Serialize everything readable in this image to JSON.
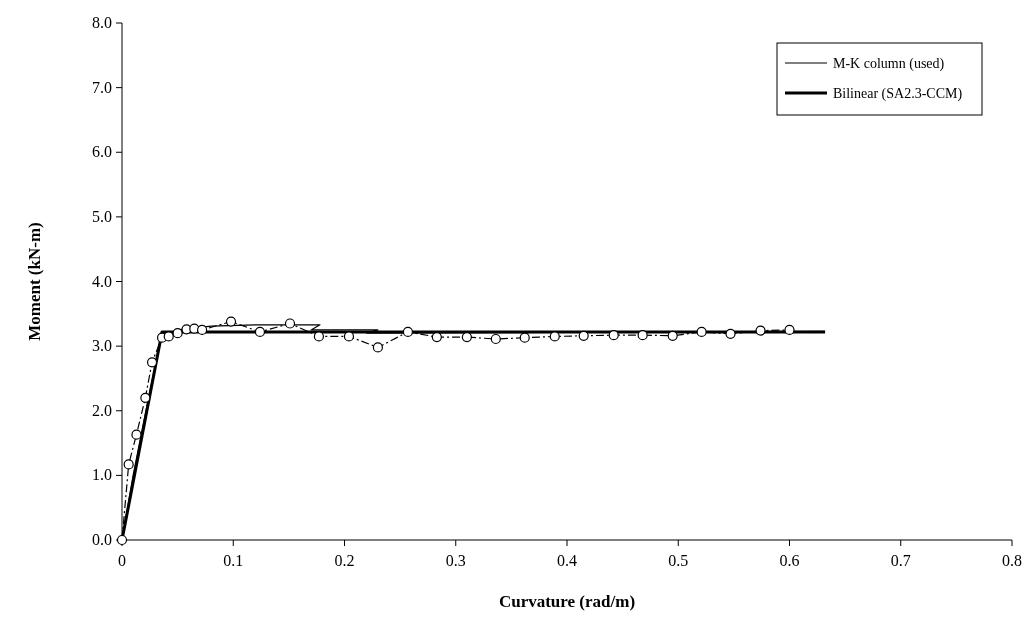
{
  "chart_data": {
    "type": "line",
    "xlabel": "Curvature (rad/m)",
    "ylabel": "Moment (kN-m)",
    "xlim": [
      0,
      0.8
    ],
    "ylim": [
      0,
      8
    ],
    "xticks": [
      0,
      0.1,
      0.2,
      0.3,
      0.4,
      0.5,
      0.6,
      0.7,
      0.8
    ],
    "yticks": [
      {
        "value": 0,
        "label": "0.0"
      },
      {
        "value": 1,
        "label": "1.0"
      },
      {
        "value": 2,
        "label": "2.0"
      },
      {
        "value": 3,
        "label": "3.0"
      },
      {
        "value": 4,
        "label": "4.0"
      },
      {
        "value": 5,
        "label": "5.0"
      },
      {
        "value": 6,
        "label": "6.0"
      },
      {
        "value": 7,
        "label": "7.0"
      },
      {
        "value": 8,
        "label": "8.0"
      }
    ],
    "legend": "top right",
    "grid": false,
    "series": [
      {
        "name": "M-K column (used)",
        "color": "#000000",
        "line_style": "solid",
        "marker": "none",
        "x": [
          0,
          0.01,
          0.025,
          0.035,
          0.05,
          0.08,
          0.12,
          0.178,
          0.17,
          0.23,
          0.22,
          0.632
        ],
        "values": [
          0,
          1.0,
          2.3,
          3.1,
          3.25,
          3.31,
          3.33,
          3.33,
          3.25,
          3.25,
          3.2,
          3.23
        ]
      },
      {
        "name": "Bilinear (SA2.3-CCM)",
        "color": "#000000",
        "line_style": "solid",
        "marker": "none",
        "x": [
          0,
          0.036,
          0.632
        ],
        "values": [
          0,
          3.22,
          3.22
        ]
      },
      {
        "color": "#000000",
        "line_style": "dashed",
        "marker": "circle",
        "x": [
          0,
          0.006,
          0.013,
          0.021,
          0.027,
          0.036,
          0.042,
          0.05,
          0.058,
          0.065,
          0.072,
          0.098,
          0.124,
          0.151,
          0.177,
          0.204,
          0.23,
          0.257,
          0.283,
          0.31,
          0.336,
          0.362,
          0.389,
          0.415,
          0.442,
          0.468,
          0.495,
          0.521,
          0.547,
          0.574,
          0.6
        ],
        "values": [
          0,
          1.17,
          1.63,
          2.2,
          2.75,
          3.13,
          3.15,
          3.2,
          3.26,
          3.27,
          3.25,
          3.38,
          3.22,
          3.35,
          3.15,
          3.15,
          2.98,
          3.22,
          3.14,
          3.14,
          3.11,
          3.13,
          3.15,
          3.16,
          3.17,
          3.17,
          3.16,
          3.22,
          3.19,
          3.24,
          3.25
        ]
      }
    ]
  }
}
